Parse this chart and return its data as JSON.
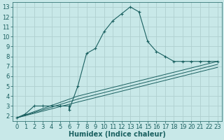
{
  "xlabel": "Humidex (Indice chaleur)",
  "ylabel": "",
  "bg_color": "#c8e8e8",
  "grid_color": "#b0d0d0",
  "line_color": "#1a6060",
  "xlim": [
    -0.5,
    23.5
  ],
  "ylim": [
    1.5,
    13.5
  ],
  "xticks": [
    0,
    1,
    2,
    3,
    4,
    5,
    6,
    7,
    8,
    9,
    10,
    11,
    12,
    13,
    14,
    15,
    16,
    17,
    18,
    19,
    20,
    21,
    22,
    23
  ],
  "yticks": [
    2,
    3,
    4,
    5,
    6,
    7,
    8,
    9,
    10,
    11,
    12,
    13
  ],
  "line1_x": [
    0,
    1,
    2,
    3,
    4,
    5,
    6,
    6,
    7,
    8,
    9,
    10,
    11,
    12,
    13,
    14,
    15,
    16,
    17,
    18,
    19,
    20,
    21,
    22,
    23
  ],
  "line1_y": [
    1.8,
    2.2,
    3.0,
    3.0,
    3.0,
    3.0,
    3.0,
    2.6,
    5.0,
    8.3,
    8.8,
    10.5,
    11.6,
    12.3,
    13.0,
    12.5,
    9.5,
    8.5,
    8.0,
    7.5,
    7.5,
    7.5,
    7.5,
    7.5,
    7.5
  ],
  "line2_x": [
    0,
    7,
    23
  ],
  "line2_y": [
    1.8,
    4.0,
    7.5
  ],
  "line3_x": [
    0,
    7,
    23
  ],
  "line3_y": [
    1.8,
    3.7,
    7.2
  ],
  "line4_x": [
    0,
    7,
    23
  ],
  "line4_y": [
    1.8,
    3.4,
    6.9
  ],
  "fontsize_tick": 6,
  "fontsize_label": 7
}
